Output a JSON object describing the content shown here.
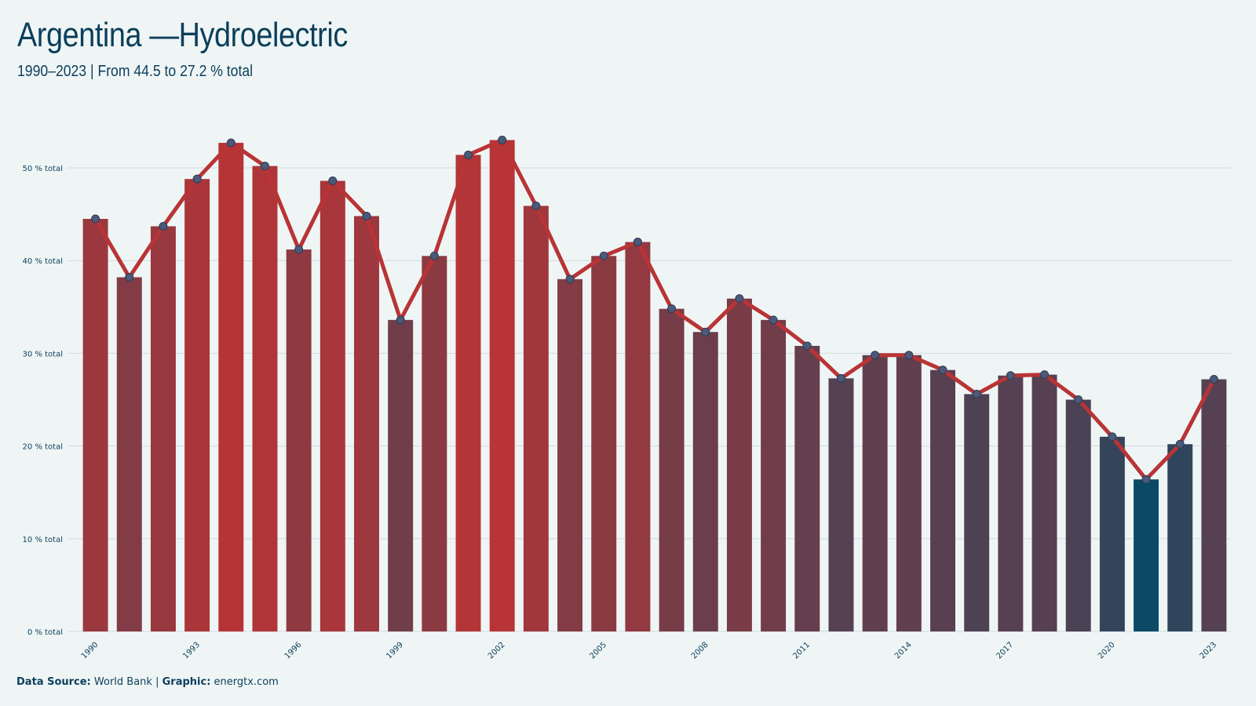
{
  "title": "Argentina —Hydroelectric",
  "subtitle": "1990–2023 | From 44.5 to 27.2 % total",
  "footer": {
    "source_label": "Data Source:",
    "source_value": "World Bank",
    "separator": "|",
    "graphic_label": "Graphic:",
    "graphic_value": "energtx.com"
  },
  "colors": {
    "background": "#eff5f5",
    "text": "#0b3f5c",
    "line": "#b83436",
    "bar_high": "#b83436",
    "bar_low": "#0b4a66",
    "gridline": "#cfdcdf"
  },
  "chart_data": {
    "type": "bar",
    "overlay": "line",
    "categories": [
      "1990",
      "1991",
      "1992",
      "1993",
      "1994",
      "1995",
      "1996",
      "1997",
      "1998",
      "1999",
      "2000",
      "2001",
      "2002",
      "2003",
      "2004",
      "2005",
      "2006",
      "2007",
      "2008",
      "2009",
      "2010",
      "2011",
      "2012",
      "2013",
      "2014",
      "2015",
      "2016",
      "2017",
      "2018",
      "2019",
      "2020",
      "2021",
      "2022",
      "2023"
    ],
    "x_tick_labels": [
      "1990",
      "1993",
      "1996",
      "1999",
      "2002",
      "2005",
      "2008",
      "2011",
      "2014",
      "2017",
      "2020",
      "2023"
    ],
    "values": [
      44.5,
      38.2,
      43.7,
      48.8,
      52.7,
      50.2,
      41.2,
      48.6,
      44.8,
      33.6,
      40.5,
      51.4,
      53.0,
      45.9,
      38.0,
      40.5,
      42.0,
      34.8,
      32.3,
      35.9,
      33.6,
      30.8,
      27.3,
      29.8,
      29.8,
      28.2,
      25.6,
      27.6,
      27.7,
      25.0,
      21.0,
      16.4,
      20.2,
      27.2
    ],
    "ylim": [
      0,
      60
    ],
    "y_ticks": [
      0,
      10,
      20,
      30,
      40,
      50
    ],
    "y_tick_labels": [
      "0 % total",
      "10 % total",
      "20 % total",
      "30 % total",
      "40 % total",
      "50 % total"
    ],
    "grid": true,
    "xlabel": "",
    "ylabel": ""
  }
}
